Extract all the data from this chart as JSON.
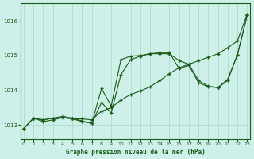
{
  "title": "Graphe pression niveau de la mer (hPa)",
  "bg_color": "#cef0e8",
  "grid_color": "#a8d8cc",
  "line_color": "#1a5c1a",
  "xlim": [
    -0.3,
    23.3
  ],
  "ylim": [
    1012.6,
    1016.5
  ],
  "yticks": [
    1013,
    1014,
    1015,
    1016
  ],
  "xticks": [
    0,
    1,
    2,
    3,
    4,
    5,
    6,
    7,
    8,
    9,
    10,
    11,
    12,
    13,
    14,
    15,
    16,
    17,
    18,
    19,
    20,
    21,
    22,
    23
  ],
  "line1_x": [
    0,
    1,
    2,
    3,
    4,
    5,
    6,
    7,
    8,
    9,
    10,
    11,
    12,
    13,
    14,
    15,
    16,
    17,
    18,
    19,
    20,
    21,
    22,
    23
  ],
  "line1_y": [
    1012.9,
    1013.2,
    1013.15,
    1013.2,
    1013.22,
    1013.18,
    1013.18,
    1013.15,
    1013.4,
    1013.5,
    1013.72,
    1013.88,
    1013.98,
    1014.1,
    1014.28,
    1014.48,
    1014.65,
    1014.75,
    1014.85,
    1014.95,
    1015.05,
    1015.22,
    1015.42,
    1016.18
  ],
  "line2_x": [
    0,
    1,
    2,
    3,
    4,
    5,
    6,
    7,
    8,
    9,
    10,
    11,
    12,
    13,
    14,
    15,
    16,
    17,
    18,
    19,
    20,
    21,
    22,
    23
  ],
  "line2_y": [
    1012.9,
    1013.2,
    1013.15,
    1013.2,
    1013.25,
    1013.2,
    1013.12,
    1013.05,
    1014.05,
    1013.55,
    1014.88,
    1014.98,
    1015.0,
    1015.05,
    1015.05,
    1015.05,
    1014.85,
    1014.75,
    1014.28,
    1014.12,
    1014.08,
    1014.28,
    1015.02,
    1016.15
  ],
  "line3_x": [
    0,
    1,
    2,
    3,
    4,
    5,
    6,
    7,
    8,
    9,
    10,
    11,
    12,
    13,
    14,
    15,
    16,
    17,
    18,
    19,
    20,
    21,
    22,
    23
  ],
  "line3_y": [
    1012.9,
    1013.2,
    1013.1,
    1013.15,
    1013.22,
    1013.18,
    1013.1,
    1013.05,
    1013.65,
    1013.35,
    1014.45,
    1014.88,
    1014.98,
    1015.05,
    1015.08,
    1015.08,
    1014.62,
    1014.72,
    1014.22,
    1014.1,
    1014.08,
    1014.32,
    1015.02,
    1016.15
  ]
}
